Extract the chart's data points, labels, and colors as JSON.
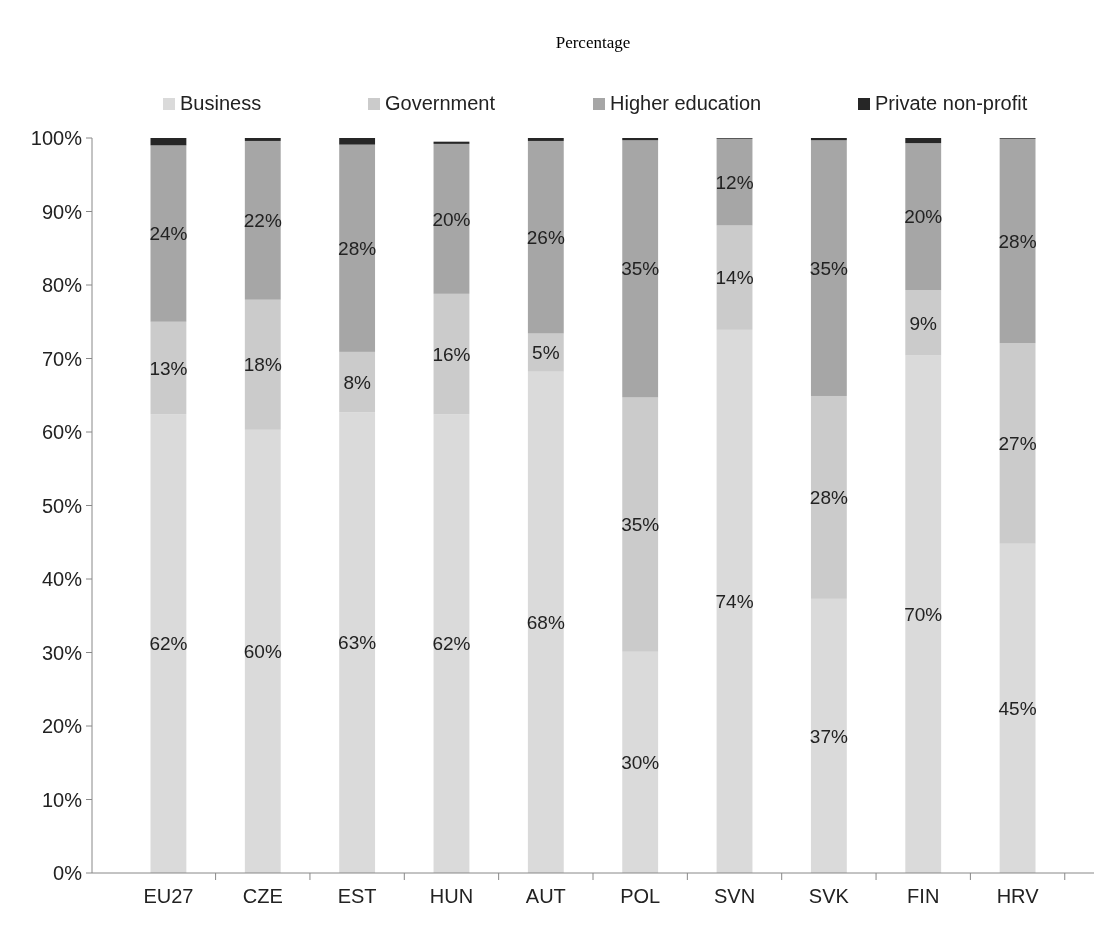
{
  "chart_data": {
    "type": "bar",
    "title": "Percentage",
    "stacked": true,
    "legend": "top",
    "grid": false,
    "categories": [
      "EU27",
      "CZE",
      "EST",
      "HUN",
      "AUT",
      "POL",
      "SVN",
      "SVK",
      "FIN",
      "HRV"
    ],
    "ylim": [
      0,
      100
    ],
    "yticks": [
      {
        "value": 0,
        "label": "0%"
      },
      {
        "value": 10,
        "label": "10%"
      },
      {
        "value": 20,
        "label": "20%"
      },
      {
        "value": 30,
        "label": "30%"
      },
      {
        "value": 40,
        "label": "40%"
      },
      {
        "value": 50,
        "label": "50%"
      },
      {
        "value": 60,
        "label": "60%"
      },
      {
        "value": 70,
        "label": "70%"
      },
      {
        "value": 80,
        "label": "80%"
      },
      {
        "value": 90,
        "label": "90%"
      },
      {
        "value": 100,
        "label": "100%"
      }
    ],
    "series": [
      {
        "name": "Business",
        "color": "#dadada",
        "values": [
          62.4,
          60.3,
          62.7,
          62.4,
          68.2,
          30.1,
          73.9,
          37.3,
          70.4,
          44.8
        ],
        "value_labels": [
          "62%",
          "60%",
          "63%",
          "62%",
          "68%",
          "30%",
          "74%",
          "37%",
          "70%",
          "45%"
        ]
      },
      {
        "name": "Government",
        "color": "#cbcbcb",
        "values": [
          12.6,
          17.7,
          8.2,
          16.4,
          5.2,
          34.6,
          14.2,
          27.6,
          8.9,
          27.3
        ],
        "value_labels": [
          "13%",
          "18%",
          "8%",
          "16%",
          "5%",
          "35%",
          "14%",
          "28%",
          "9%",
          "27%"
        ]
      },
      {
        "name": "Higher education",
        "color": "#a6a6a6",
        "values": [
          24.0,
          21.6,
          28.2,
          20.4,
          26.2,
          35.0,
          11.8,
          34.8,
          20.0,
          27.8
        ],
        "value_labels": [
          "24%",
          "22%",
          "28%",
          "20%",
          "26%",
          "35%",
          "12%",
          "35%",
          "20%",
          "28%"
        ]
      },
      {
        "name": "Private non-profit",
        "color": "#262626",
        "values": [
          1.0,
          0.4,
          0.9,
          0.3,
          0.4,
          0.3,
          0.1,
          0.3,
          0.7,
          0.1
        ]
      }
    ]
  }
}
